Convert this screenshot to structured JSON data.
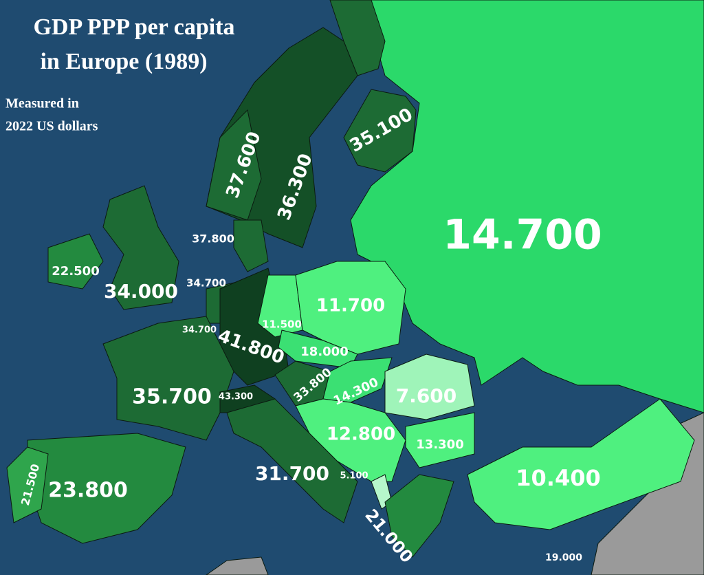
{
  "title_lines": [
    "GDP PPP per capita",
    "in Europe (1989)"
  ],
  "subtitle_lines": [
    "Measured in",
    "2022 US dollars"
  ],
  "labels": [
    "14.700",
    "37.600",
    "36.300",
    "35.100",
    "37.800",
    "22.500",
    "34.000",
    "34.700",
    "11.500",
    "11.700",
    "34.700",
    "41.800",
    "18.000",
    "35.700",
    "43.300",
    "33.800",
    "14.300",
    "7.600",
    "12.800",
    "13.300",
    "21.500",
    "23.800",
    "31.700",
    "5.100",
    "10.400",
    "21.000",
    "19.000"
  ]
}
